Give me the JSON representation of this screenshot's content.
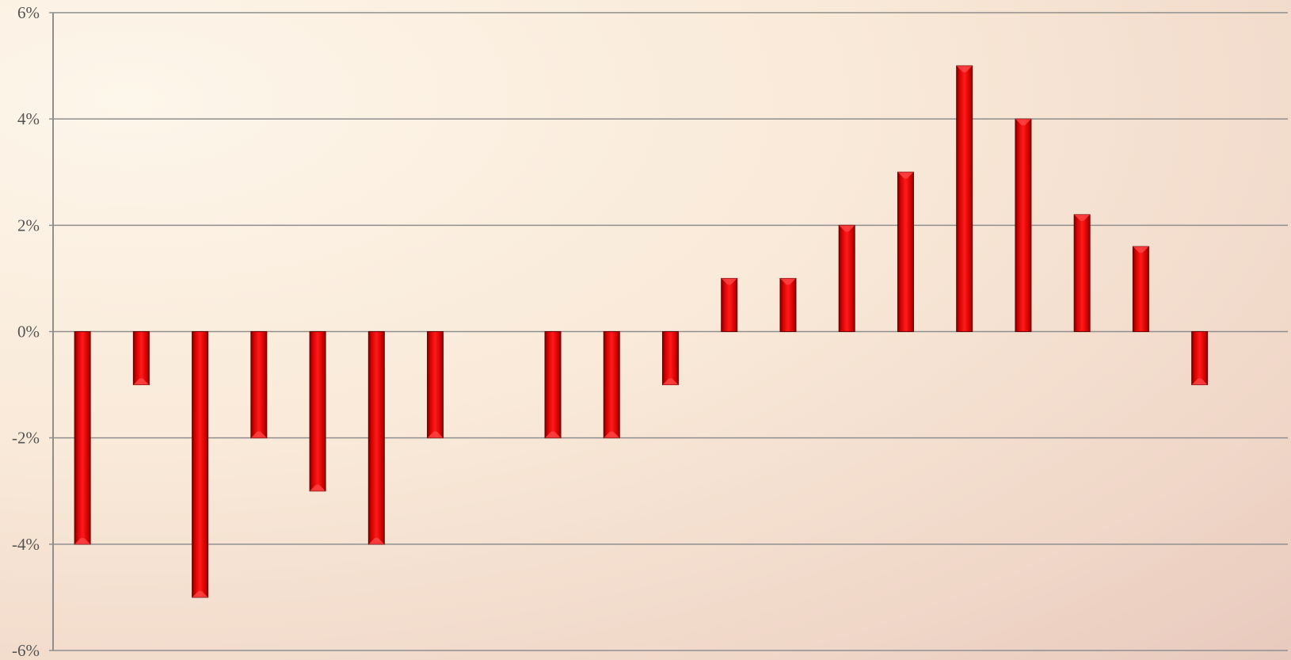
{
  "chart_data": {
    "type": "bar",
    "title": "",
    "xlabel": "",
    "ylabel": "",
    "ylim": [
      -6,
      6
    ],
    "yticks": [
      {
        "value": 6,
        "label": "6%"
      },
      {
        "value": 4,
        "label": "4%"
      },
      {
        "value": 2,
        "label": "2%"
      },
      {
        "value": 0,
        "label": "0%"
      },
      {
        "value": -2,
        "label": "-2%"
      },
      {
        "value": -4,
        "label": "-4%"
      },
      {
        "value": -6,
        "label": "-6%"
      }
    ],
    "grid": true,
    "legend": "none",
    "bar_color": "#e00000",
    "x": [
      1,
      2,
      3,
      4,
      5,
      6,
      7,
      8,
      9,
      10,
      11,
      12,
      13,
      14,
      15,
      16,
      17,
      18,
      19,
      20,
      21
    ],
    "values": [
      -4,
      -1,
      -5,
      -2,
      -3,
      -4,
      -2,
      null,
      -2,
      -2,
      -1,
      1,
      1,
      2,
      3,
      5,
      4,
      2.2,
      1.6,
      -1,
      null
    ]
  }
}
